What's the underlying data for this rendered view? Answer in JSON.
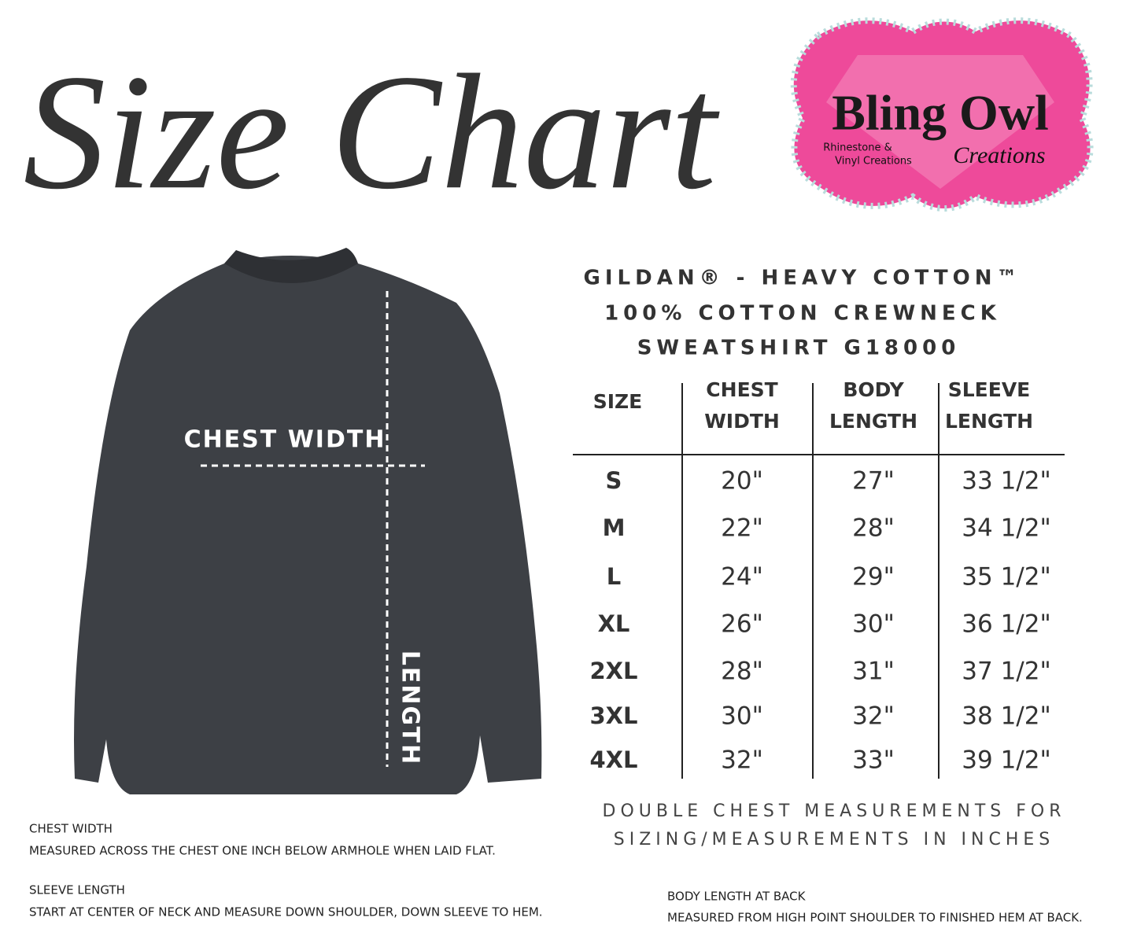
{
  "title": "Size Chart",
  "logo": {
    "name": "Bling Owl",
    "tagline": [
      "Rhinestone &",
      "Vinyl Creations"
    ],
    "subname": "Creations"
  },
  "garment": {
    "chest_label": "CHEST WIDTH",
    "length_label": "LENGTH"
  },
  "product": {
    "lines": [
      "GILDAN® - HEAVY COTTON™",
      "100% COTTON CREWNECK",
      "SWEATSHIRT G18000"
    ]
  },
  "table": {
    "headers": [
      [
        "SIZE"
      ],
      [
        "CHEST",
        "WIDTH"
      ],
      [
        "BODY",
        "LENGTH"
      ],
      [
        "SLEEVE",
        "LENGTH"
      ]
    ],
    "rows": [
      [
        "S",
        "20\"",
        "27\"",
        "33 1/2\""
      ],
      [
        "M",
        "22\"",
        "28\"",
        "34 1/2\""
      ],
      [
        "L",
        "24\"",
        "29\"",
        "35 1/2\""
      ],
      [
        "XL",
        "26\"",
        "30\"",
        "36 1/2\""
      ],
      [
        "2XL",
        "28\"",
        "31\"",
        "37 1/2\""
      ],
      [
        "3XL",
        "30\"",
        "32\"",
        "38 1/2\""
      ],
      [
        "4XL",
        "32\"",
        "33\"",
        "39 1/2\""
      ]
    ]
  },
  "note": [
    "DOUBLE CHEST MEASUREMENTS FOR",
    "SIZING/MEASUREMENTS IN INCHES"
  ],
  "footnotes": [
    {
      "title": "CHEST WIDTH",
      "text": "MEASURED ACROSS THE CHEST ONE INCH BELOW ARMHOLE WHEN LAID FLAT."
    },
    {
      "title": "SLEEVE LENGTH",
      "text": "START AT CENTER OF NECK AND MEASURE DOWN SHOULDER, DOWN SLEEVE TO HEM."
    },
    {
      "title": "BODY LENGTH AT BACK",
      "text": "MEASURED FROM HIGH POINT SHOULDER TO FINISHED HEM AT BACK."
    }
  ]
}
